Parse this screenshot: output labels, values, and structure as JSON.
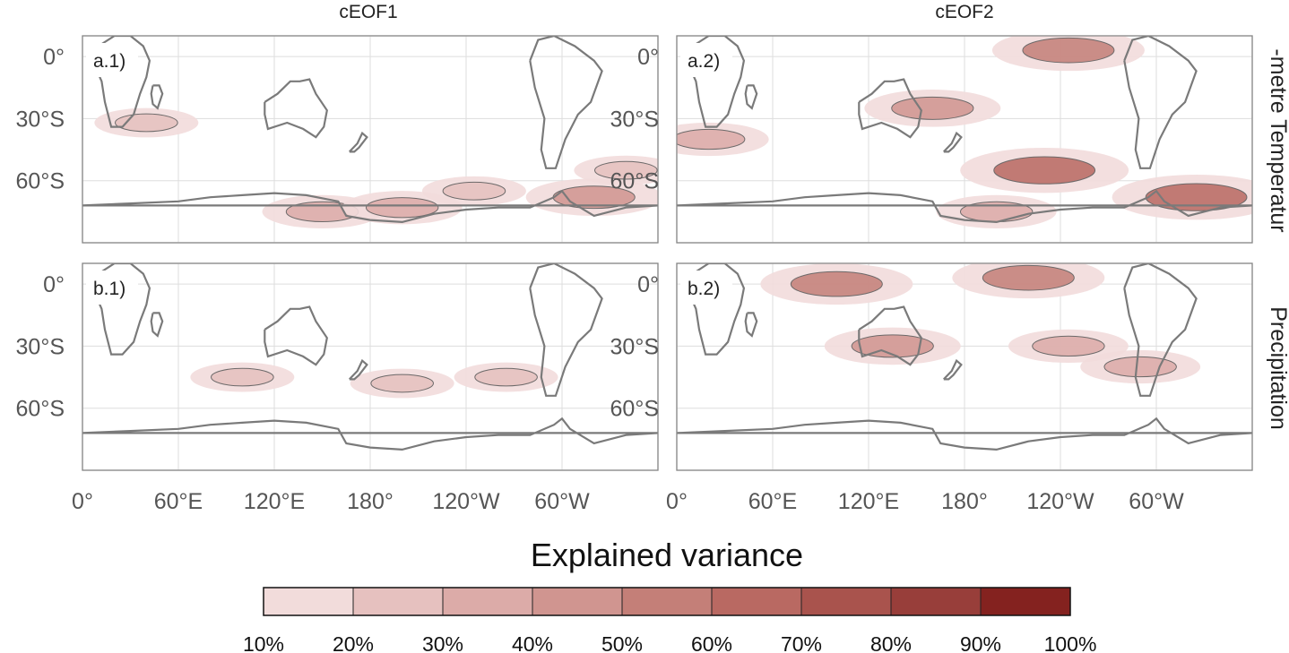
{
  "chart_data": [
    {
      "type": "heatmap",
      "panel": "a.1)",
      "column_title": "cEOF1",
      "row_title": "-metre Temperatur",
      "x_ticks": [
        "0°",
        "60°E",
        "120°E",
        "180°",
        "120°W",
        "60°W"
      ],
      "y_ticks": [
        "0°",
        "30°S",
        "60°S"
      ],
      "xlim": [
        0,
        360
      ],
      "ylim": [
        -90,
        10
      ],
      "regions": [
        {
          "lon": 40,
          "lat": -32,
          "value": 0.2
        },
        {
          "lon": 150,
          "lat": -75,
          "value": 0.3
        },
        {
          "lon": 200,
          "lat": -73,
          "value": 0.3
        },
        {
          "lon": 245,
          "lat": -65,
          "value": 0.2
        },
        {
          "lon": 320,
          "lat": -68,
          "value": 0.4
        },
        {
          "lon": 340,
          "lat": -55,
          "value": 0.2
        }
      ]
    },
    {
      "type": "heatmap",
      "panel": "a.2)",
      "column_title": "cEOF2",
      "row_title": "-metre Temperatur",
      "x_ticks": [
        "0°",
        "60°E",
        "120°E",
        "180°",
        "120°W",
        "60°W"
      ],
      "y_ticks": [
        "0°",
        "30°S",
        "60°S"
      ],
      "xlim": [
        0,
        360
      ],
      "ylim": [
        -90,
        10
      ],
      "regions": [
        {
          "lon": 245,
          "lat": 3,
          "value": 0.5
        },
        {
          "lon": 160,
          "lat": -25,
          "value": 0.4
        },
        {
          "lon": 230,
          "lat": -55,
          "value": 0.6
        },
        {
          "lon": 325,
          "lat": -68,
          "value": 0.6
        },
        {
          "lon": 20,
          "lat": -40,
          "value": 0.3
        },
        {
          "lon": 200,
          "lat": -75,
          "value": 0.3
        }
      ]
    },
    {
      "type": "heatmap",
      "panel": "b.1)",
      "column_title": "cEOF1",
      "row_title": "Precipitation",
      "x_ticks": [
        "0°",
        "60°E",
        "120°E",
        "180°",
        "120°W",
        "60°W"
      ],
      "y_ticks": [
        "0°",
        "30°S",
        "60°S"
      ],
      "xlim": [
        0,
        360
      ],
      "ylim": [
        -90,
        10
      ],
      "regions": [
        {
          "lon": 100,
          "lat": -45,
          "value": 0.2
        },
        {
          "lon": 200,
          "lat": -48,
          "value": 0.2
        },
        {
          "lon": 265,
          "lat": -45,
          "value": 0.2
        }
      ]
    },
    {
      "type": "heatmap",
      "panel": "b.2)",
      "column_title": "cEOF2",
      "row_title": "Precipitation",
      "x_ticks": [
        "0°",
        "60°E",
        "120°E",
        "180°",
        "120°W",
        "60°W"
      ],
      "y_ticks": [
        "0°",
        "30°S",
        "60°S"
      ],
      "xlim": [
        0,
        360
      ],
      "ylim": [
        -90,
        10
      ],
      "regions": [
        {
          "lon": 220,
          "lat": 3,
          "value": 0.5
        },
        {
          "lon": 100,
          "lat": 0,
          "value": 0.5
        },
        {
          "lon": 135,
          "lat": -30,
          "value": 0.4
        },
        {
          "lon": 245,
          "lat": -30,
          "value": 0.3
        },
        {
          "lon": 290,
          "lat": -40,
          "value": 0.3
        }
      ]
    }
  ],
  "colorbar": {
    "title": "Explained variance",
    "tick_labels": [
      "10%",
      "20%",
      "30%",
      "40%",
      "50%",
      "60%",
      "70%",
      "80%",
      "90%",
      "100%"
    ],
    "colors": [
      "#f2dcdb",
      "#e6c1bf",
      "#dcaba8",
      "#d09590",
      "#c47f78",
      "#b96962",
      "#a9534d",
      "#983e3a",
      "#84221f"
    ]
  }
}
